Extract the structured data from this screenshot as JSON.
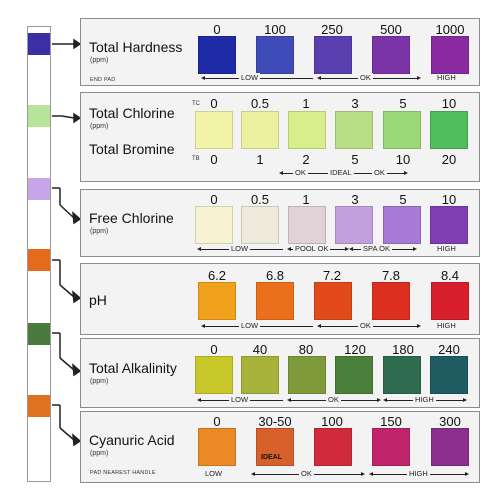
{
  "tests": [
    {
      "label": "Total Hardness",
      "unit": "(ppm)",
      "note": "END PAD",
      "pad_color": "#3b2fa4",
      "values": [
        "0",
        "100",
        "250",
        "500",
        "1000"
      ],
      "colors": [
        "#1f2aa6",
        "#3f4bb8",
        "#5a3fb0",
        "#7b33a8",
        "#8a2aa0"
      ],
      "tiers": [
        "LOW",
        "OK",
        "HIGH"
      ]
    },
    {
      "label": "Total Chlorine",
      "unit": "(ppm)",
      "label2": "Total Bromine",
      "row1_label": "TC",
      "row2_label": "TB",
      "pad_color": "#b7e39a",
      "values": [
        "0",
        "0.5",
        "1",
        "3",
        "5",
        "10"
      ],
      "values2": [
        "0",
        "1",
        "2",
        "5",
        "10",
        "20"
      ],
      "colors": [
        "#f2f3a6",
        "#eaf2a0",
        "#d6ee8c",
        "#b9df86",
        "#9ad776",
        "#4fbf5e"
      ],
      "tiers": [
        "OK",
        "IDEAL",
        "OK"
      ]
    },
    {
      "label": "Free Chlorine",
      "unit": "(ppm)",
      "pad_color": "#c6a6e6",
      "values": [
        "0",
        "0.5",
        "1",
        "3",
        "5",
        "10"
      ],
      "colors": [
        "#f7f2cf",
        "#eeeadc",
        "#e0d2d6",
        "#c2a0de",
        "#a67ad6",
        "#7e3fb4"
      ],
      "tiers": [
        "LOW",
        "POOL OK",
        "SPA OK",
        "HIGH"
      ]
    },
    {
      "label": "pH",
      "pad_color": "#e66a1d",
      "values": [
        "6.2",
        "6.8",
        "7.2",
        "7.8",
        "8.4"
      ],
      "colors": [
        "#f2a11c",
        "#ec6f1c",
        "#e24a1c",
        "#dd2f1f",
        "#d81f2d"
      ],
      "tiers": [
        "LOW",
        "OK",
        "HIGH"
      ]
    },
    {
      "label": "Total Alkalinity",
      "unit": "(ppm)",
      "pad_color": "#4a7a3e",
      "values": [
        "0",
        "40",
        "80",
        "120",
        "180",
        "240"
      ],
      "colors": [
        "#c9c82a",
        "#a6b23a",
        "#7f9a3a",
        "#4a7f3c",
        "#2f6b4e",
        "#1f5c62"
      ],
      "tiers": [
        "LOW",
        "OK",
        "HIGH"
      ]
    },
    {
      "label": "Cyanuric Acid",
      "unit": "(ppm)",
      "note": "PAD NEAREST HANDLE",
      "pad_color": "#e0711f",
      "values": [
        "0",
        "30-50",
        "100",
        "150",
        "300"
      ],
      "ideal_text": "IDEAL",
      "colors": [
        "#eb8a24",
        "#d8602a",
        "#d02a3c",
        "#c0246a",
        "#8b2e8c"
      ],
      "tiers": [
        "LOW",
        "OK",
        "HIGH"
      ]
    }
  ]
}
